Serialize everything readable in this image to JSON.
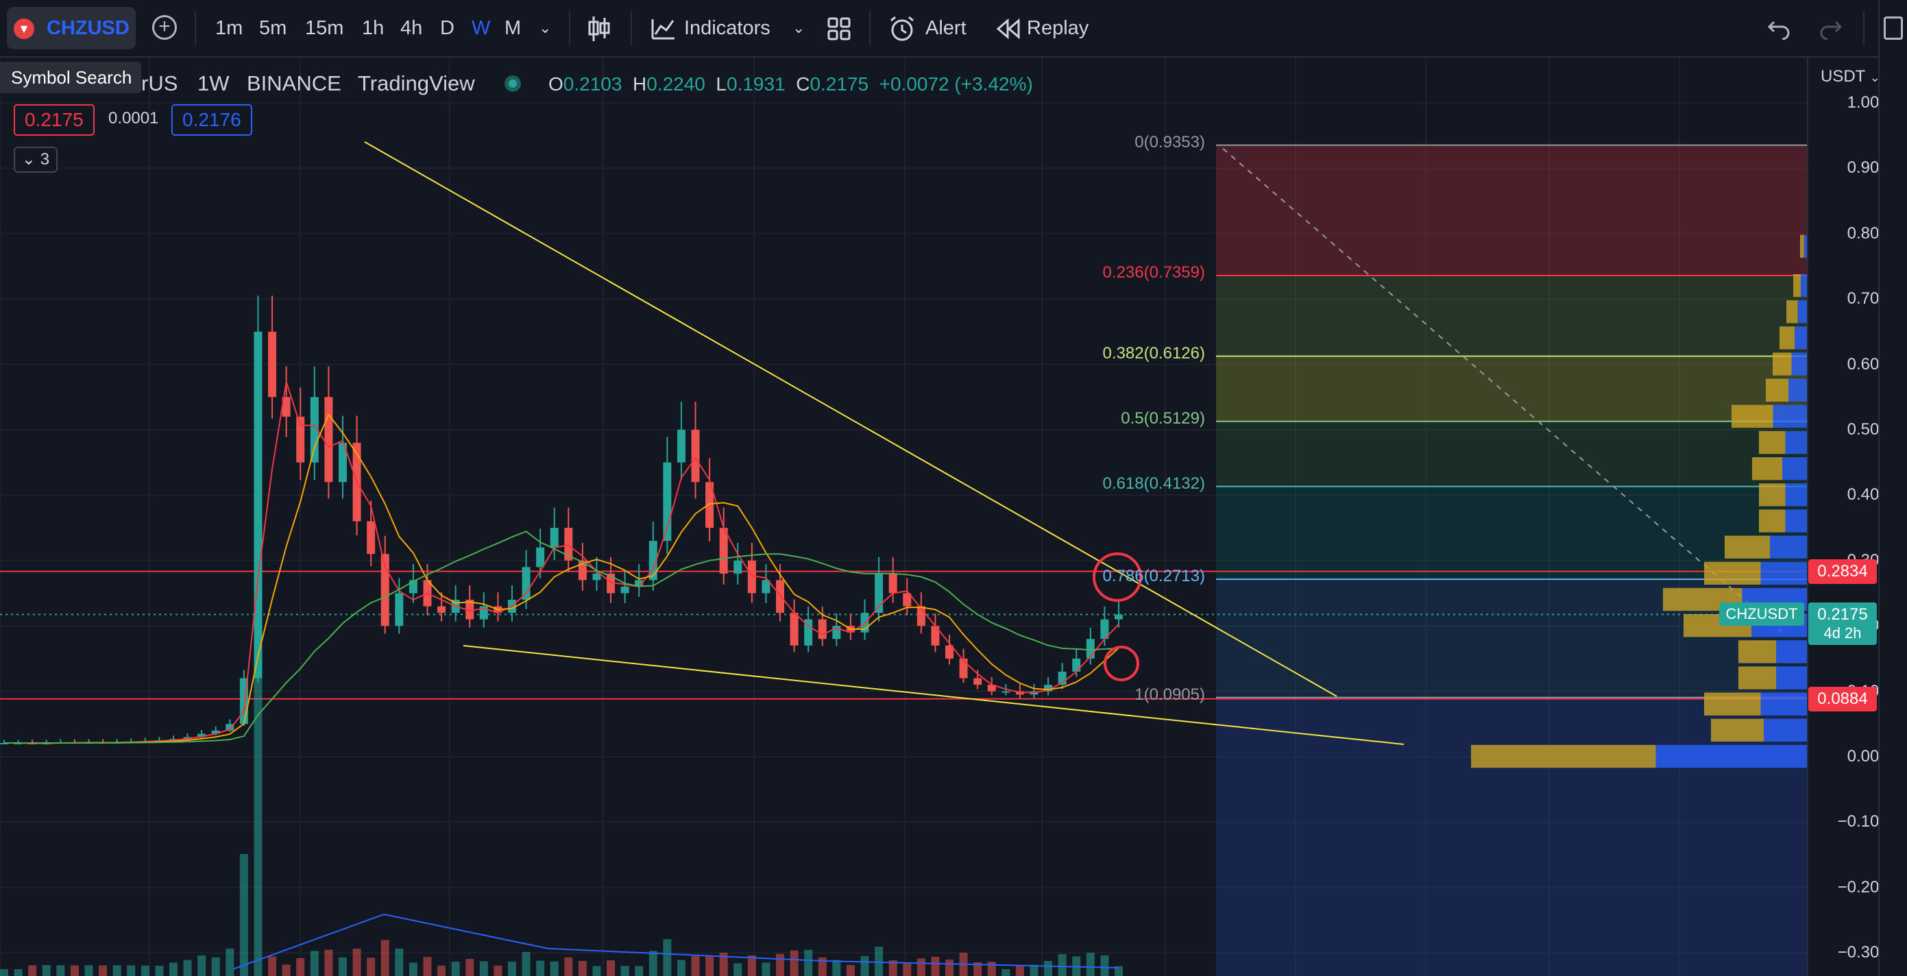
{
  "toolbar": {
    "symbol": "CHZUSD",
    "intervals": [
      "1m",
      "5m",
      "15m",
      "1h",
      "4h",
      "D",
      "W",
      "M"
    ],
    "active_interval": "W",
    "indicators_label": "Indicators",
    "alert_label": "Alert",
    "replay_label": "Replay"
  },
  "tooltip": {
    "text": "Symbol Search"
  },
  "legend": {
    "name_fragment": "rUS",
    "interval": "1W",
    "exchange": "BINANCE",
    "source": "TradingView",
    "open_key": "O",
    "open": "0.2103",
    "high_key": "H",
    "high": "0.2240",
    "low_key": "L",
    "low": "0.1931",
    "close_key": "C",
    "close": "0.2175",
    "change": "+0.0072 (+3.42%)",
    "bid": "0.2175",
    "spread": "0.0001",
    "ask": "0.2176",
    "collapsed_count": "3"
  },
  "fib_levels": [
    {
      "label": "0(0.9353)",
      "value": 0.9353,
      "color": "#9598a1"
    },
    {
      "label": "0.236(0.7359)",
      "value": 0.7359,
      "color": "#f23645"
    },
    {
      "label": "0.382(0.6126)",
      "value": 0.6126,
      "color": "#c5e17a"
    },
    {
      "label": "0.5(0.5129)",
      "value": 0.5129,
      "color": "#81c784"
    },
    {
      "label": "0.618(0.4132)",
      "value": 0.4132,
      "color": "#4db6ac"
    },
    {
      "label": "0.786(0.2713)",
      "value": 0.2713,
      "color": "#64b5f6"
    },
    {
      "label": "1(0.0905)",
      "value": 0.0905,
      "color": "#9598a1"
    }
  ],
  "price_axis": {
    "currency": "USDT",
    "ticks": [
      "1.0000",
      "0.9000",
      "0.8000",
      "0.7000",
      "0.6000",
      "0.5000",
      "0.4000",
      "0.3000",
      "0.2000",
      "0.1000",
      "0.0000",
      "−0.1000",
      "−0.2000",
      "−0.3000"
    ],
    "tags": [
      {
        "text": "0.2834",
        "value": 0.2834,
        "color": "#f23645"
      },
      {
        "text": "0.2175",
        "value": 0.2175,
        "color": "#26a69a",
        "sub": "4d 2h"
      },
      {
        "text": "0.0884",
        "value": 0.0884,
        "color": "#f23645"
      }
    ],
    "symbol_tag": "CHZUSDT"
  },
  "horizontal_lines": [
    0.2834,
    0.0884
  ],
  "chart_data": {
    "type": "candlestick",
    "interval": "1W",
    "ylim": [
      -0.3,
      1.0
    ],
    "candles_close_series": [
      0.021,
      0.021,
      0.02,
      0.021,
      0.022,
      0.021,
      0.022,
      0.021,
      0.022,
      0.023,
      0.024,
      0.025,
      0.027,
      0.03,
      0.035,
      0.04,
      0.05,
      0.12,
      0.65,
      0.55,
      0.52,
      0.45,
      0.55,
      0.42,
      0.48,
      0.36,
      0.31,
      0.2,
      0.25,
      0.27,
      0.23,
      0.22,
      0.24,
      0.21,
      0.23,
      0.22,
      0.24,
      0.29,
      0.32,
      0.35,
      0.3,
      0.27,
      0.28,
      0.25,
      0.26,
      0.27,
      0.33,
      0.45,
      0.5,
      0.42,
      0.35,
      0.28,
      0.3,
      0.25,
      0.27,
      0.22,
      0.17,
      0.21,
      0.18,
      0.2,
      0.19,
      0.22,
      0.28,
      0.25,
      0.23,
      0.2,
      0.17,
      0.15,
      0.12,
      0.11,
      0.1,
      0.1,
      0.095,
      0.1,
      0.11,
      0.13,
      0.15,
      0.18,
      0.21,
      0.2175
    ],
    "volume_profile_note": "visible range volume profile on right"
  }
}
